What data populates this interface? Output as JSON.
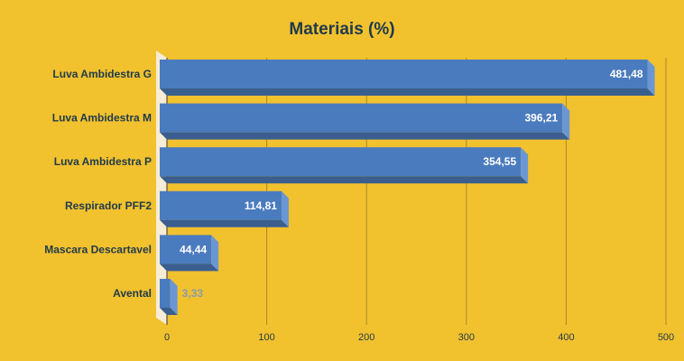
{
  "chart_data": {
    "type": "bar",
    "orientation": "horizontal",
    "title": "Materiais (%)",
    "categories": [
      "Luva Ambidestra G",
      "Luva Ambidestra M",
      "Luva Ambidestra P",
      "Respirador PFF2",
      "Mascara Descartavel",
      "Avental"
    ],
    "values": [
      481.48,
      396.21,
      354.55,
      114.81,
      44.44,
      3.33
    ],
    "value_labels": [
      "481,48",
      "396,21",
      "354,55",
      "114,81",
      "44,44",
      "3,33"
    ],
    "xticks": [
      0,
      100,
      200,
      300,
      400,
      500
    ],
    "xtick_labels": [
      "0",
      "100",
      "200",
      "300",
      "400",
      "500"
    ],
    "xlim": [
      0,
      500
    ],
    "xlabel": "",
    "ylabel": "",
    "grid": true,
    "legend": "none"
  },
  "colors": {
    "background": "#F2C12E",
    "bar_front": "#4A7BBE",
    "bar_top": "#3A5F8E",
    "bar_side": "#6A97D4",
    "wall": "#F5EDD6",
    "grid": "#A8892A",
    "text": "#1E3A4C",
    "label_inside": "#FFFFFF",
    "label_outside": "#8A9BB0"
  }
}
